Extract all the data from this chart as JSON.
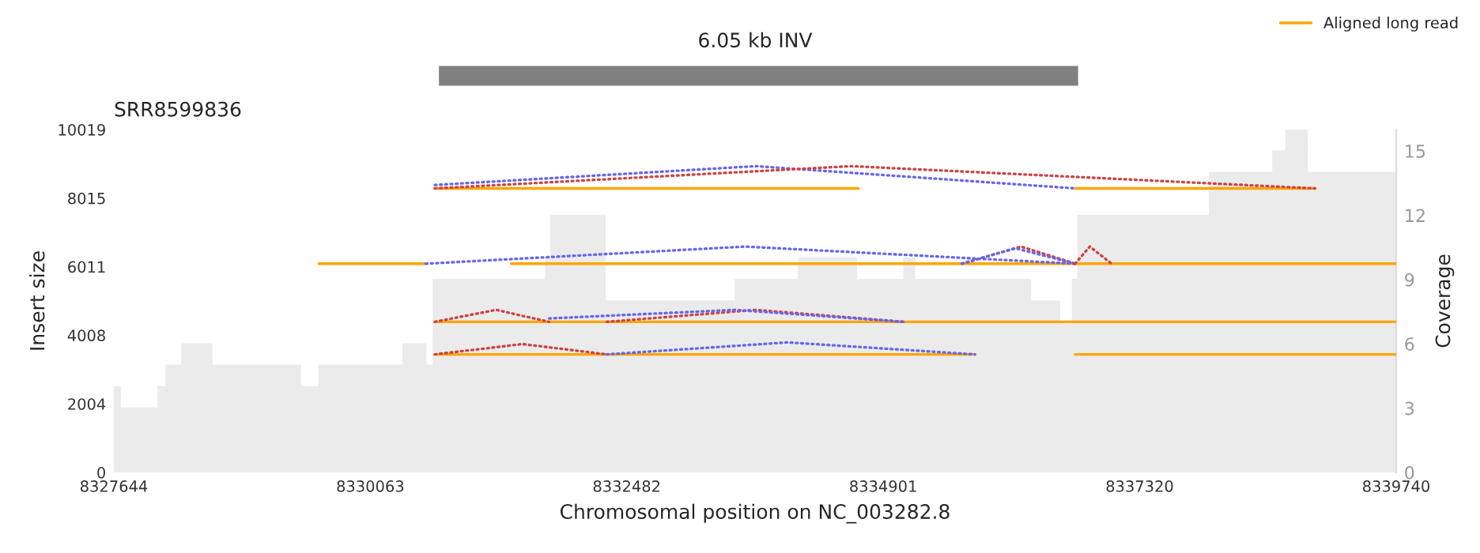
{
  "chart_data": [
    {
      "type": "bar",
      "orientation": "horizontal",
      "title": "6.05 kb INV",
      "categories": [
        null
      ],
      "base": [
        8330700
      ],
      "values": [
        6050
      ],
      "color": "#808080",
      "xlim": [
        8327644,
        8339740
      ],
      "tick_labels": false
    },
    {
      "type": "line",
      "title": "SRR8599836",
      "xlabel": "Chromosomal position on NC_003282.8",
      "ylabel": "Insert size",
      "y2label": "Coverage",
      "xlim": [
        8327644,
        8339740
      ],
      "xticks": [
        8327644,
        8330063,
        8332482,
        8334901,
        8337320,
        8339740
      ],
      "ylim": [
        0,
        10019
      ],
      "yticks": [
        0,
        2004,
        4008,
        6011,
        8015,
        10019
      ],
      "y2lim": [
        0,
        16
      ],
      "y2ticks": [
        0,
        3,
        6,
        9,
        12,
        15
      ],
      "legend": "top right",
      "marker": "none",
      "series": [
        {
          "type": "area",
          "axis": "y2",
          "color": "#ebebeb",
          "x": [
            8327644,
            8327704,
            8327704,
            8328062,
            8328062,
            8328136,
            8328136,
            8328285,
            8328285,
            8328569,
            8328569,
            8329404,
            8329404,
            8329578,
            8329578,
            8330373,
            8330373,
            8330587,
            8330587,
            8330657,
            8330657,
            8331716,
            8331716,
            8331765,
            8331765,
            8332278,
            8332278,
            8333506,
            8333506,
            8334102,
            8334102,
            8334649,
            8334649,
            8335097,
            8335097,
            8335196,
            8335196,
            8336290,
            8336290,
            8336563,
            8336563,
            8336687,
            8336687,
            8336737,
            8336737,
            8337980,
            8337980,
            8338577,
            8338577,
            8338701,
            8338701,
            8338900,
            8338900,
            8339740
          ],
          "values": [
            4,
            4,
            3,
            3,
            4,
            4,
            5,
            5,
            6,
            6,
            5,
            5,
            4,
            4,
            5,
            5,
            6,
            6,
            5,
            5,
            9,
            9,
            10,
            10,
            12,
            12,
            8,
            8,
            9,
            9,
            10,
            10,
            9,
            9,
            10,
            10,
            9,
            9,
            8,
            8,
            7,
            7,
            9,
            9,
            12,
            12,
            14,
            14,
            15,
            15,
            16,
            16,
            14,
            14
          ]
        },
        {
          "name": "Aligned long read",
          "type": "line",
          "line_style": "solid",
          "color": "#ffa500",
          "x": [
            8330672,
            8334669
          ],
          "values": [
            8300,
            8300
          ]
        },
        {
          "type": "line",
          "line_style": "solid",
          "color": "#ffa500",
          "x": [
            8336712,
            8338975
          ],
          "values": [
            8300,
            8300
          ]
        },
        {
          "type": "line",
          "line_style": "solid",
          "color": "#ffa500",
          "x": [
            8329578,
            8330587
          ],
          "values": [
            6100,
            6100
          ]
        },
        {
          "type": "line",
          "line_style": "solid",
          "color": "#ffa500",
          "x": [
            8331392,
            8339740
          ],
          "values": [
            6100,
            6100
          ]
        },
        {
          "type": "line",
          "line_style": "solid",
          "color": "#ffa500",
          "x": [
            8330672,
            8339740
          ],
          "values": [
            4400,
            4400
          ]
        },
        {
          "type": "line",
          "line_style": "solid",
          "color": "#ffa500",
          "x": [
            8330672,
            8335767
          ],
          "values": [
            3450,
            3450
          ]
        },
        {
          "type": "line",
          "line_style": "solid",
          "color": "#ffa500",
          "x": [
            8336712,
            8339740
          ],
          "values": [
            3450,
            3450
          ]
        },
        {
          "type": "line",
          "line_style": "dotted",
          "color": "#6666ee",
          "x": [
            8330672,
            8333700,
            8336712
          ],
          "values": [
            8400,
            8950,
            8300
          ]
        },
        {
          "type": "line",
          "line_style": "dotted",
          "color": "#cc4444",
          "x": [
            8330672,
            8334600,
            8338975
          ],
          "values": [
            8300,
            8950,
            8300
          ]
        },
        {
          "type": "line",
          "line_style": "dotted",
          "color": "#6666ee",
          "x": [
            8330587,
            8333600,
            8336712
          ],
          "values": [
            6100,
            6600,
            6100
          ]
        },
        {
          "type": "line",
          "line_style": "dotted",
          "color": "#cc4444",
          "x": [
            8335643,
            8336200,
            8336712
          ],
          "values": [
            6100,
            6600,
            6100
          ]
        },
        {
          "type": "line",
          "line_style": "dotted",
          "color": "#6666ee",
          "x": [
            8335643,
            8336150,
            8336712
          ],
          "values": [
            6100,
            6550,
            6100
          ]
        },
        {
          "type": "line",
          "line_style": "dotted",
          "color": "#cc4444",
          "x": [
            8336712,
            8336850,
            8337055
          ],
          "values": [
            6100,
            6600,
            6100
          ]
        },
        {
          "type": "line",
          "line_style": "dotted",
          "color": "#cc4444",
          "x": [
            8330672,
            8331250,
            8331750
          ],
          "values": [
            4400,
            4750,
            4400
          ]
        },
        {
          "type": "line",
          "line_style": "dotted",
          "color": "#cc4444",
          "x": [
            8332293,
            8333700,
            8335097
          ],
          "values": [
            4400,
            4750,
            4400
          ]
        },
        {
          "type": "line",
          "line_style": "dotted",
          "color": "#6666ee",
          "x": [
            8331750,
            8333500,
            8335097
          ],
          "values": [
            4500,
            4750,
            4400
          ]
        },
        {
          "type": "line",
          "line_style": "dotted",
          "color": "#cc4444",
          "x": [
            8330672,
            8331500,
            8332293
          ],
          "values": [
            3450,
            3750,
            3450
          ]
        },
        {
          "type": "line",
          "line_style": "dotted",
          "color": "#6666ee",
          "x": [
            8332293,
            8334000,
            8335767
          ],
          "values": [
            3450,
            3800,
            3450
          ]
        }
      ]
    }
  ]
}
